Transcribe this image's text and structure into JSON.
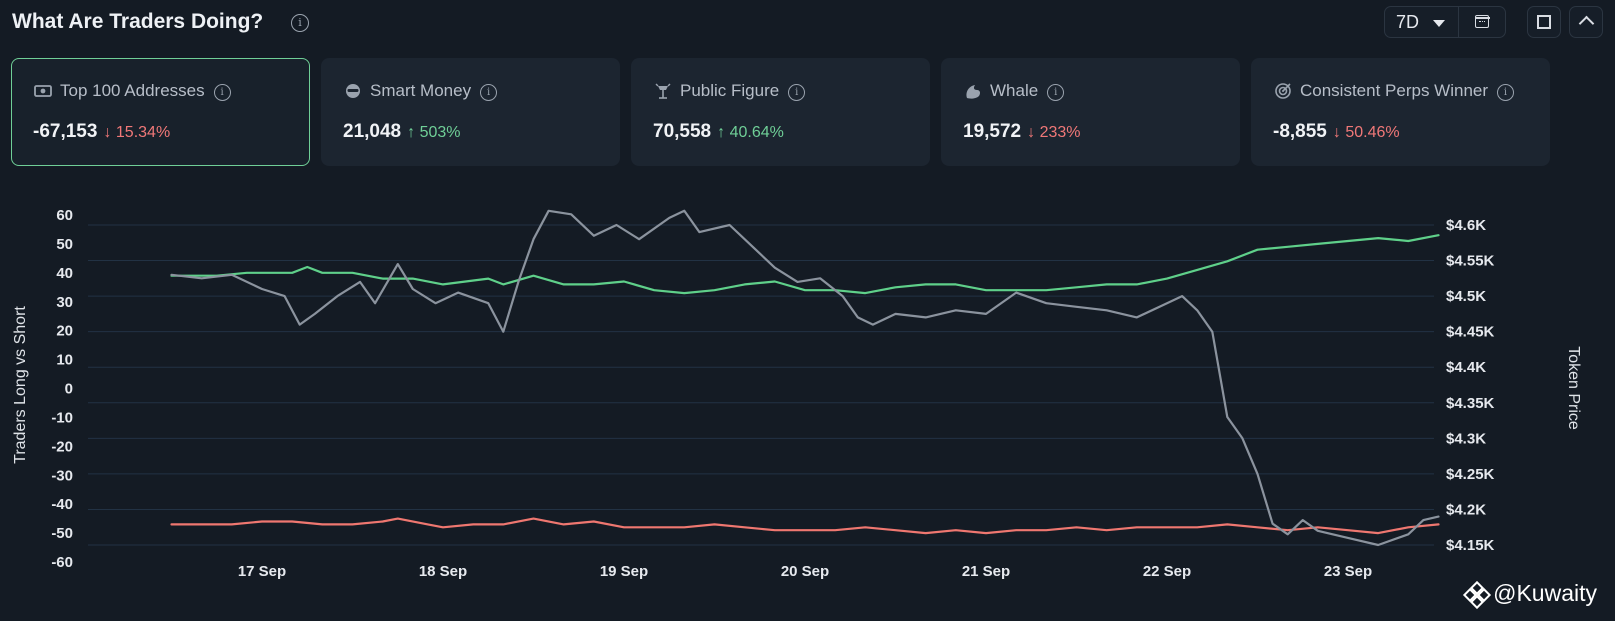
{
  "header": {
    "title": "What Are Traders Doing?",
    "info_glyph": "i",
    "range_label": "7D"
  },
  "icons": {
    "info": "info-icon",
    "caret": "caret-down-icon",
    "calendar": "calendar-icon",
    "fullscreen": "fullscreen-icon",
    "collapse": "chevron-up-icon"
  },
  "cards": [
    {
      "label": "Top 100 Addresses",
      "icon": "money-icon",
      "value": "-67,153",
      "change": "15.34%",
      "direction": "down",
      "active": true
    },
    {
      "label": "Smart Money",
      "icon": "sunglasses-icon",
      "value": "21,048",
      "change": "503%",
      "direction": "up",
      "active": false
    },
    {
      "label": "Public Figure",
      "icon": "spotlight-icon",
      "value": "70,558",
      "change": "40.64%",
      "direction": "up",
      "active": false
    },
    {
      "label": "Whale",
      "icon": "whale-icon",
      "value": "19,572",
      "change": "233%",
      "direction": "down",
      "active": false
    },
    {
      "label": "Consistent Perps Winner",
      "icon": "target-icon",
      "value": "-8,855",
      "change": "50.46%",
      "direction": "down",
      "active": false
    }
  ],
  "colors": {
    "long": "#5fd08a",
    "short": "#ef7770",
    "price": "#8b939e",
    "up": "#6fcf97",
    "down": "#f07878",
    "grid": "#223244"
  },
  "watermark": "@Kuwaity",
  "chart_data": {
    "type": "line",
    "xlabel": "",
    "ylabel_left": "Traders Long vs Short",
    "ylabel_right": "Token Price",
    "ylim_left": [
      -60,
      60
    ],
    "ylim_right": [
      4150,
      4600
    ],
    "left_ticks": [
      "60",
      "50",
      "40",
      "30",
      "20",
      "10",
      "0",
      "-10",
      "-20",
      "-30",
      "-40",
      "-50",
      "-60"
    ],
    "right_ticks": [
      "$4.6K",
      "$4.55K",
      "$4.5K",
      "$4.45K",
      "$4.4K",
      "$4.35K",
      "$4.3K",
      "$4.25K",
      "$4.2K",
      "$4.15K"
    ],
    "x_ticks": [
      "17 Sep",
      "18 Sep",
      "19 Sep",
      "20 Sep",
      "21 Sep",
      "22 Sep",
      "23 Sep"
    ],
    "grid": true,
    "legend": "none",
    "series": [
      {
        "key": "long",
        "axis": "left",
        "points": [
          [
            "16 Sep 12:00",
            39
          ],
          [
            "16 Sep 18:00",
            39
          ],
          [
            "16 Sep 22:00",
            40
          ],
          [
            "17 Sep 00:00",
            40
          ],
          [
            "17 Sep 04:00",
            40
          ],
          [
            "17 Sep 06:00",
            42
          ],
          [
            "17 Sep 08:00",
            40
          ],
          [
            "17 Sep 12:00",
            40
          ],
          [
            "17 Sep 16:00",
            38
          ],
          [
            "17 Sep 20:00",
            38
          ],
          [
            "18 Sep 00:00",
            36
          ],
          [
            "18 Sep 06:00",
            38
          ],
          [
            "18 Sep 08:00",
            36
          ],
          [
            "18 Sep 12:00",
            39
          ],
          [
            "18 Sep 16:00",
            36
          ],
          [
            "18 Sep 20:00",
            36
          ],
          [
            "19 Sep 00:00",
            37
          ],
          [
            "19 Sep 04:00",
            34
          ],
          [
            "19 Sep 08:00",
            33
          ],
          [
            "19 Sep 12:00",
            34
          ],
          [
            "19 Sep 16:00",
            36
          ],
          [
            "19 Sep 20:00",
            37
          ],
          [
            "20 Sep 00:00",
            34
          ],
          [
            "20 Sep 04:00",
            34
          ],
          [
            "20 Sep 08:00",
            33
          ],
          [
            "20 Sep 12:00",
            35
          ],
          [
            "20 Sep 16:00",
            36
          ],
          [
            "20 Sep 20:00",
            36
          ],
          [
            "21 Sep 00:00",
            34
          ],
          [
            "21 Sep 04:00",
            34
          ],
          [
            "21 Sep 08:00",
            34
          ],
          [
            "21 Sep 12:00",
            35
          ],
          [
            "21 Sep 16:00",
            36
          ],
          [
            "21 Sep 20:00",
            36
          ],
          [
            "22 Sep 00:00",
            38
          ],
          [
            "22 Sep 04:00",
            41
          ],
          [
            "22 Sep 08:00",
            44
          ],
          [
            "22 Sep 12:00",
            48
          ],
          [
            "22 Sep 16:00",
            49
          ],
          [
            "22 Sep 20:00",
            50
          ],
          [
            "23 Sep 00:00",
            51
          ],
          [
            "23 Sep 04:00",
            52
          ],
          [
            "23 Sep 08:00",
            51
          ],
          [
            "23 Sep 12:00",
            53
          ]
        ]
      },
      {
        "key": "short",
        "axis": "left",
        "points": [
          [
            "16 Sep 12:00",
            -47
          ],
          [
            "16 Sep 20:00",
            -47
          ],
          [
            "17 Sep 00:00",
            -46
          ],
          [
            "17 Sep 04:00",
            -46
          ],
          [
            "17 Sep 08:00",
            -47
          ],
          [
            "17 Sep 12:00",
            -47
          ],
          [
            "17 Sep 16:00",
            -46
          ],
          [
            "17 Sep 18:00",
            -45
          ],
          [
            "17 Sep 22:00",
            -47
          ],
          [
            "18 Sep 00:00",
            -48
          ],
          [
            "18 Sep 04:00",
            -47
          ],
          [
            "18 Sep 08:00",
            -47
          ],
          [
            "18 Sep 12:00",
            -45
          ],
          [
            "18 Sep 16:00",
            -47
          ],
          [
            "18 Sep 20:00",
            -46
          ],
          [
            "19 Sep 00:00",
            -48
          ],
          [
            "19 Sep 04:00",
            -48
          ],
          [
            "19 Sep 08:00",
            -48
          ],
          [
            "19 Sep 12:00",
            -47
          ],
          [
            "19 Sep 16:00",
            -48
          ],
          [
            "19 Sep 20:00",
            -49
          ],
          [
            "20 Sep 00:00",
            -49
          ],
          [
            "20 Sep 04:00",
            -49
          ],
          [
            "20 Sep 08:00",
            -48
          ],
          [
            "20 Sep 12:00",
            -49
          ],
          [
            "20 Sep 16:00",
            -50
          ],
          [
            "20 Sep 20:00",
            -49
          ],
          [
            "21 Sep 00:00",
            -50
          ],
          [
            "21 Sep 04:00",
            -49
          ],
          [
            "21 Sep 08:00",
            -49
          ],
          [
            "21 Sep 12:00",
            -48
          ],
          [
            "21 Sep 16:00",
            -49
          ],
          [
            "21 Sep 20:00",
            -48
          ],
          [
            "22 Sep 00:00",
            -48
          ],
          [
            "22 Sep 04:00",
            -48
          ],
          [
            "22 Sep 08:00",
            -47
          ],
          [
            "22 Sep 12:00",
            -48
          ],
          [
            "22 Sep 16:00",
            -49
          ],
          [
            "22 Sep 20:00",
            -48
          ],
          [
            "23 Sep 00:00",
            -49
          ],
          [
            "23 Sep 04:00",
            -50
          ],
          [
            "23 Sep 08:00",
            -48
          ],
          [
            "23 Sep 12:00",
            -47
          ]
        ]
      },
      {
        "key": "price",
        "axis": "right",
        "points": [
          [
            "16 Sep 12:00",
            4530
          ],
          [
            "16 Sep 16:00",
            4525
          ],
          [
            "16 Sep 20:00",
            4530
          ],
          [
            "17 Sep 00:00",
            4510
          ],
          [
            "17 Sep 03:00",
            4500
          ],
          [
            "17 Sep 05:00",
            4460
          ],
          [
            "17 Sep 07:00",
            4475
          ],
          [
            "17 Sep 10:00",
            4500
          ],
          [
            "17 Sep 13:00",
            4520
          ],
          [
            "17 Sep 15:00",
            4490
          ],
          [
            "17 Sep 18:00",
            4545
          ],
          [
            "17 Sep 20:00",
            4510
          ],
          [
            "17 Sep 23:00",
            4490
          ],
          [
            "18 Sep 02:00",
            4505
          ],
          [
            "18 Sep 06:00",
            4490
          ],
          [
            "18 Sep 08:00",
            4450
          ],
          [
            "18 Sep 10:00",
            4520
          ],
          [
            "18 Sep 12:00",
            4580
          ],
          [
            "18 Sep 14:00",
            4620
          ],
          [
            "18 Sep 17:00",
            4615
          ],
          [
            "18 Sep 20:00",
            4585
          ],
          [
            "18 Sep 23:00",
            4600
          ],
          [
            "19 Sep 02:00",
            4580
          ],
          [
            "19 Sep 06:00",
            4610
          ],
          [
            "19 Sep 08:00",
            4620
          ],
          [
            "19 Sep 10:00",
            4590
          ],
          [
            "19 Sep 14:00",
            4600
          ],
          [
            "19 Sep 17:00",
            4570
          ],
          [
            "19 Sep 20:00",
            4540
          ],
          [
            "19 Sep 23:00",
            4520
          ],
          [
            "20 Sep 02:00",
            4525
          ],
          [
            "20 Sep 05:00",
            4500
          ],
          [
            "20 Sep 07:00",
            4470
          ],
          [
            "20 Sep 09:00",
            4460
          ],
          [
            "20 Sep 12:00",
            4475
          ],
          [
            "20 Sep 16:00",
            4470
          ],
          [
            "20 Sep 20:00",
            4480
          ],
          [
            "21 Sep 00:00",
            4475
          ],
          [
            "21 Sep 04:00",
            4505
          ],
          [
            "21 Sep 08:00",
            4490
          ],
          [
            "21 Sep 12:00",
            4485
          ],
          [
            "21 Sep 16:00",
            4480
          ],
          [
            "21 Sep 20:00",
            4470
          ],
          [
            "22 Sep 00:00",
            4490
          ],
          [
            "22 Sep 02:00",
            4500
          ],
          [
            "22 Sep 04:00",
            4480
          ],
          [
            "22 Sep 06:00",
            4450
          ],
          [
            "22 Sep 08:00",
            4330
          ],
          [
            "22 Sep 10:00",
            4300
          ],
          [
            "22 Sep 12:00",
            4250
          ],
          [
            "22 Sep 14:00",
            4180
          ],
          [
            "22 Sep 16:00",
            4165
          ],
          [
            "22 Sep 18:00",
            4185
          ],
          [
            "22 Sep 20:00",
            4170
          ],
          [
            "23 Sep 00:00",
            4160
          ],
          [
            "23 Sep 04:00",
            4150
          ],
          [
            "23 Sep 08:00",
            4165
          ],
          [
            "23 Sep 10:00",
            4185
          ],
          [
            "23 Sep 12:00",
            4190
          ]
        ]
      }
    ]
  }
}
